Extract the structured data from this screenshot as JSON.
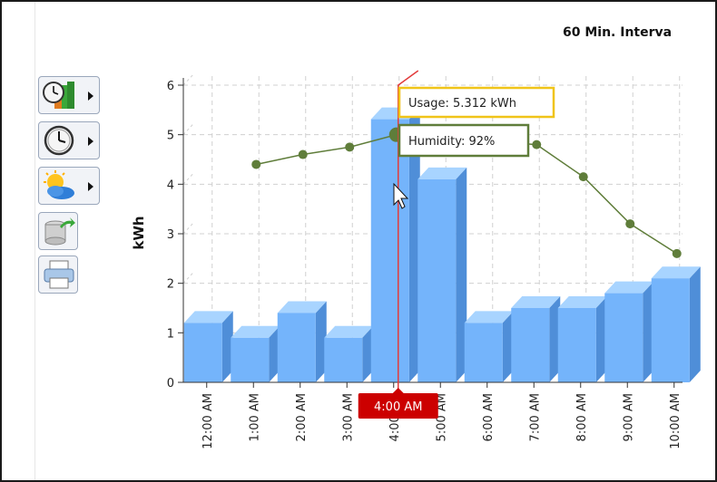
{
  "chart_data": {
    "type": "bar",
    "title": "60 Min. Interva",
    "categories": [
      "12:00 AM",
      "1:00 AM",
      "2:00 AM",
      "3:00 AM",
      "4:00 AM",
      "5:00 AM",
      "6:00 AM",
      "7:00 AM",
      "8:00 AM",
      "9:00 AM",
      "10:00 AM"
    ],
    "series": [
      {
        "kind": "bar",
        "values": [
          1.2,
          0.9,
          1.4,
          0.9,
          5.312,
          4.1,
          1.2,
          1.5,
          1.5,
          1.8,
          2.1
        ]
      },
      {
        "kind": "line",
        "values": [
          null,
          4.4,
          4.6,
          4.75,
          5.0,
          null,
          null,
          4.8,
          4.15,
          3.2,
          2.6
        ]
      }
    ],
    "ylabel": "kWh",
    "ylim": [
      0,
      6
    ],
    "yticks": [
      "0",
      "1",
      "2",
      "3",
      "4",
      "5",
      "6"
    ],
    "grid": true,
    "colors": {
      "bar_front": "#74b4fb",
      "bar_side": "#4f8ed8",
      "bar_top": "#a8d4ff",
      "line": "#5f7d3a",
      "marker": "#5f7d3a",
      "cursor": "#e23b3b",
      "cursor_label_bg": "#cc0000"
    },
    "cursor_label": "4:00 AM",
    "tooltips": {
      "usage": "Usage: 5.312 kWh",
      "humidity": "Humidity: 92%"
    }
  },
  "toolbar": {
    "buttons": [
      {
        "name": "interval-chart-button",
        "icon": "clock-bar-chart-icon",
        "has_dropdown": true
      },
      {
        "name": "time-button",
        "icon": "clock-icon",
        "has_dropdown": true
      },
      {
        "name": "weather-button",
        "icon": "sun-cloud-icon",
        "has_dropdown": true
      },
      {
        "name": "export-button",
        "icon": "database-export-icon",
        "has_dropdown": false
      },
      {
        "name": "print-button",
        "icon": "printer-icon",
        "has_dropdown": false
      }
    ]
  }
}
